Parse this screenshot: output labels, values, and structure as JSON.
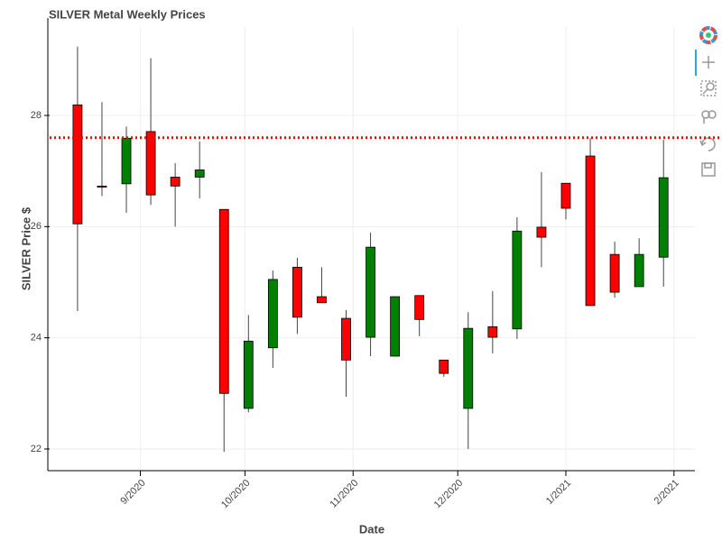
{
  "chart_data": {
    "type": "candlestick",
    "title": "SILVER Metal Weekly Prices",
    "x_label": "Date",
    "y_label": "SILVER Price $",
    "x": [
      "2020-08-14",
      "2020-08-21",
      "2020-08-28",
      "2020-09-04",
      "2020-09-11",
      "2020-09-18",
      "2020-09-25",
      "2020-10-02",
      "2020-10-09",
      "2020-10-16",
      "2020-10-23",
      "2020-10-30",
      "2020-11-06",
      "2020-11-13",
      "2020-11-20",
      "2020-11-27",
      "2020-12-04",
      "2020-12-11",
      "2020-12-18",
      "2020-12-25",
      "2021-01-01",
      "2021-01-08",
      "2021-01-15",
      "2021-01-22",
      "2021-01-29"
    ],
    "open": [
      28.19,
      26.73,
      26.77,
      27.71,
      26.89,
      26.89,
      26.31,
      22.73,
      23.82,
      25.27,
      24.74,
      24.35,
      24.01,
      23.67,
      24.76,
      23.6,
      22.73,
      24.2,
      24.16,
      25.99,
      26.78,
      27.27,
      25.5,
      24.92,
      25.45
    ],
    "high": [
      29.24,
      28.24,
      27.8,
      29.03,
      27.14,
      27.53,
      26.31,
      24.41,
      25.21,
      25.44,
      25.27,
      24.5,
      25.89,
      24.74,
      24.76,
      23.6,
      24.46,
      24.84,
      26.17,
      26.98,
      26.78,
      27.59,
      25.73,
      25.79,
      27.56
    ],
    "low": [
      24.48,
      26.55,
      26.25,
      26.39,
      26.0,
      26.51,
      21.95,
      22.66,
      23.46,
      24.07,
      24.63,
      22.94,
      23.67,
      23.67,
      24.03,
      23.3,
      22.0,
      23.72,
      23.98,
      25.27,
      26.13,
      24.58,
      24.72,
      24.92,
      24.92
    ],
    "close": [
      26.05,
      26.71,
      27.59,
      26.57,
      26.73,
      27.02,
      23.0,
      23.94,
      25.05,
      24.37,
      24.63,
      23.6,
      25.63,
      24.74,
      24.33,
      23.36,
      24.17,
      24.01,
      25.92,
      25.81,
      26.33,
      24.58,
      24.82,
      25.5,
      26.88
    ],
    "up_color": "#008000",
    "down_color": "#ff0000",
    "hline": 27.6,
    "hline_color": "#ff0000",
    "xlim": [
      "2020-08-06",
      "2021-02-07"
    ],
    "xticks": [
      {
        "value": "2020-09-01",
        "label": "9/2020"
      },
      {
        "value": "2020-10-01",
        "label": "10/2020"
      },
      {
        "value": "2020-11-01",
        "label": "11/2020"
      },
      {
        "value": "2020-12-01",
        "label": "12/2020"
      },
      {
        "value": "2021-01-01",
        "label": "1/2021"
      },
      {
        "value": "2021-02-01",
        "label": "2/2021"
      }
    ],
    "ylim": [
      21.61,
      29.59
    ],
    "yticks": [
      22,
      24,
      26,
      28
    ],
    "grid": true
  }
}
